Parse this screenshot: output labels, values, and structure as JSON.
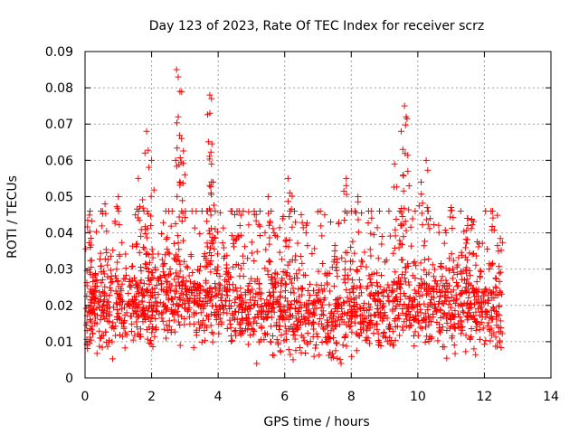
{
  "chart_data": {
    "type": "scatter",
    "title": "Day 123 of 2023, Rate Of TEC Index for receiver scrz",
    "xlabel": "GPS time / hours",
    "ylabel": "ROTI / TECUs",
    "xlim": [
      0,
      14
    ],
    "ylim": [
      0,
      0.09
    ],
    "xticks": [
      0,
      2,
      4,
      6,
      8,
      10,
      12,
      14
    ],
    "xtick_labels": [
      "0",
      "2",
      "4",
      "6",
      "8",
      "10",
      "12",
      "14"
    ],
    "yticks": [
      0,
      0.01,
      0.02,
      0.03,
      0.04,
      0.05,
      0.06,
      0.07,
      0.08,
      0.09
    ],
    "ytick_labels": [
      "0",
      "0.01",
      "0.02",
      "0.03",
      "0.04",
      "0.05",
      "0.06",
      "0.07",
      "0.08",
      "0.09"
    ],
    "grid": true,
    "marker": "+",
    "color": "#ff0000",
    "data_range_x": [
      0.0,
      12.55
    ],
    "baseline_profile": [
      {
        "x": 0.0,
        "y": 0.018
      },
      {
        "x": 1.0,
        "y": 0.019
      },
      {
        "x": 2.0,
        "y": 0.021
      },
      {
        "x": 3.0,
        "y": 0.022
      },
      {
        "x": 4.0,
        "y": 0.021
      },
      {
        "x": 5.0,
        "y": 0.02
      },
      {
        "x": 6.0,
        "y": 0.018
      },
      {
        "x": 7.0,
        "y": 0.017
      },
      {
        "x": 8.0,
        "y": 0.017
      },
      {
        "x": 9.0,
        "y": 0.019
      },
      {
        "x": 10.0,
        "y": 0.019
      },
      {
        "x": 11.0,
        "y": 0.02
      },
      {
        "x": 12.0,
        "y": 0.019
      },
      {
        "x": 12.55,
        "y": 0.018
      }
    ],
    "peaks": [
      {
        "x": 0.15,
        "y": 0.046
      },
      {
        "x": 0.6,
        "y": 0.048
      },
      {
        "x": 1.0,
        "y": 0.05
      },
      {
        "x": 1.6,
        "y": 0.055
      },
      {
        "x": 1.8,
        "y": 0.062
      },
      {
        "x": 1.85,
        "y": 0.068
      },
      {
        "x": 2.0,
        "y": 0.06
      },
      {
        "x": 2.75,
        "y": 0.085
      },
      {
        "x": 2.8,
        "y": 0.083
      },
      {
        "x": 2.85,
        "y": 0.079
      },
      {
        "x": 2.8,
        "y": 0.072
      },
      {
        "x": 2.9,
        "y": 0.066
      },
      {
        "x": 3.0,
        "y": 0.056
      },
      {
        "x": 3.75,
        "y": 0.078
      },
      {
        "x": 3.8,
        "y": 0.077
      },
      {
        "x": 3.75,
        "y": 0.073
      },
      {
        "x": 3.8,
        "y": 0.059
      },
      {
        "x": 3.85,
        "y": 0.054
      },
      {
        "x": 4.5,
        "y": 0.045
      },
      {
        "x": 5.5,
        "y": 0.05
      },
      {
        "x": 6.1,
        "y": 0.055
      },
      {
        "x": 6.15,
        "y": 0.051
      },
      {
        "x": 7.85,
        "y": 0.055
      },
      {
        "x": 7.85,
        "y": 0.053
      },
      {
        "x": 8.2,
        "y": 0.05
      },
      {
        "x": 9.3,
        "y": 0.059
      },
      {
        "x": 9.5,
        "y": 0.068
      },
      {
        "x": 9.6,
        "y": 0.075
      },
      {
        "x": 9.65,
        "y": 0.072
      },
      {
        "x": 9.55,
        "y": 0.063
      },
      {
        "x": 9.7,
        "y": 0.057
      },
      {
        "x": 10.1,
        "y": 0.054
      },
      {
        "x": 10.25,
        "y": 0.06
      },
      {
        "x": 10.3,
        "y": 0.046
      },
      {
        "x": 11.0,
        "y": 0.047
      },
      {
        "x": 11.5,
        "y": 0.044
      },
      {
        "x": 12.2,
        "y": 0.046
      }
    ],
    "dense_band": {
      "y_min": 0.004,
      "y_max": 0.04,
      "n_points": 1800
    }
  }
}
